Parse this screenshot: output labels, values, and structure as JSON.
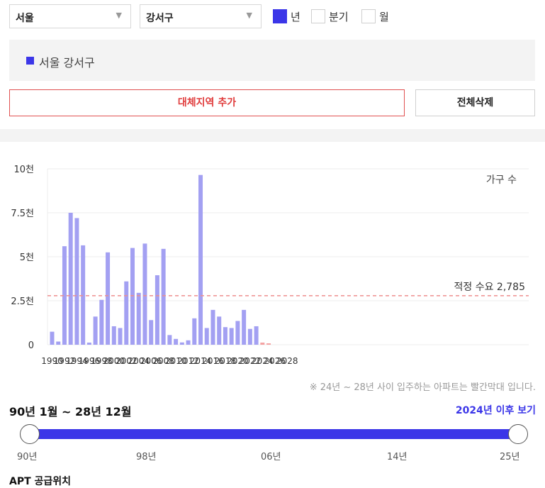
{
  "filters": {
    "city": "서울",
    "district": "강서구",
    "periods": [
      {
        "label": "년",
        "checked": true
      },
      {
        "label": "분기",
        "checked": false
      },
      {
        "label": "월",
        "checked": false
      }
    ]
  },
  "region_label": "서울 강서구",
  "buttons": {
    "add": "대체지역 추가",
    "delete_all": "전체삭제"
  },
  "chart_data": {
    "type": "bar",
    "legend": "가구 수",
    "y_ticks": [
      "0",
      "2.5천",
      "5천",
      "7.5천",
      "10천"
    ],
    "ylim": [
      0,
      10000
    ],
    "x_ticks": [
      "1990",
      "1992",
      "1994",
      "1996",
      "1998",
      "2000",
      "2002",
      "2004",
      "2006",
      "2008",
      "2010",
      "2012",
      "2014",
      "2016",
      "2018",
      "2020",
      "2022",
      "2024",
      "2026",
      "2028"
    ],
    "categories": [
      1990,
      1991,
      1992,
      1993,
      1994,
      1995,
      1996,
      1997,
      1998,
      1999,
      2000,
      2001,
      2002,
      2003,
      2004,
      2005,
      2006,
      2007,
      2008,
      2009,
      2010,
      2011,
      2012,
      2013,
      2014,
      2015,
      2016,
      2017,
      2018,
      2019,
      2020,
      2021,
      2022,
      2023,
      2024,
      2025,
      2026,
      2027,
      2028
    ],
    "values": [
      740,
      180,
      5600,
      7500,
      7200,
      5650,
      120,
      1600,
      2550,
      5250,
      1050,
      950,
      3600,
      5500,
      2950,
      5750,
      1400,
      3950,
      5450,
      550,
      330,
      130,
      250,
      1500,
      9650,
      950,
      1980,
      1600,
      1000,
      950,
      1350,
      1980,
      900,
      1050,
      120,
      80,
      0,
      0,
      0
    ],
    "highlight_from": 2024,
    "colors": {
      "normal": "#a3a0f2",
      "future": "#f4a3a3",
      "reference": "#ee8e8e"
    },
    "reference_line": {
      "value": 2785,
      "label": "적정 수요 2,785"
    },
    "grid": true
  },
  "note": "※ 24년 ~ 28년 사이 입주하는 아파트는 빨간막대 입니다.",
  "range": {
    "title": "90년 1월 ~ 28년 12월",
    "link": "2024년 이후 보기",
    "ticks": [
      "90년",
      "98년",
      "06년",
      "14년",
      "25년"
    ]
  },
  "section_title": "APT 공급위치"
}
